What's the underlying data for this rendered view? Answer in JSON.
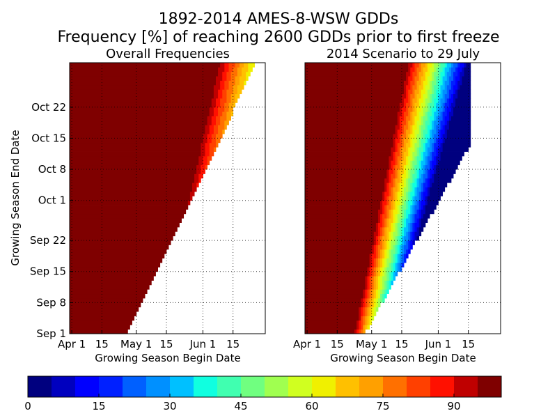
{
  "chart_data": {
    "type": "heatmap",
    "title": "1892-2014 AMES-8-WSW GDDs",
    "subtitle": "Frequency [%] of reaching 2600 GDDs prior to first freeze",
    "ylabel": "Growing Season End Date",
    "xlabel": "Growing Season Begin Date",
    "panels": [
      {
        "title": "Overall Frequencies",
        "x_ticks": [
          "Apr 1",
          "15",
          "May 1",
          "15",
          "Jun 1",
          "15"
        ],
        "y_ticks": [
          "Sep 1",
          "Sep 8",
          "Sep 15",
          "Sep 22",
          "Oct 1",
          "Oct 8",
          "Oct 15",
          "Oct 22"
        ],
        "ylabel": "Growing Season End Date",
        "xlabel": "Growing Season Begin Date"
      },
      {
        "title": "2014 Scenario to 29 July",
        "x_ticks": [
          "Apr 1",
          "15",
          "May 1",
          "15",
          "Jun 1",
          "15"
        ],
        "y_ticks": [],
        "xlabel": "Growing Season Begin Date"
      }
    ],
    "x_range": [
      "Mar 31",
      "Jun 30"
    ],
    "y_range": [
      "Sep 1",
      "Oct 31"
    ],
    "colorbar": {
      "min": 0,
      "max": 100,
      "ticks": [
        "0",
        "15",
        "30",
        "45",
        "60",
        "75",
        "90"
      ],
      "colors": [
        "#00007f",
        "#0000bf",
        "#0000ff",
        "#0020ff",
        "#0060ff",
        "#0090ff",
        "#00c0ff",
        "#10ffe0",
        "#40ffb0",
        "#70ff80",
        "#a0ff50",
        "#d0ff20",
        "#f0f000",
        "#ffc000",
        "#ffa000",
        "#ff7000",
        "#ff4000",
        "#ff1000",
        "#bf0000",
        "#7f0000"
      ]
    },
    "grid": true
  }
}
